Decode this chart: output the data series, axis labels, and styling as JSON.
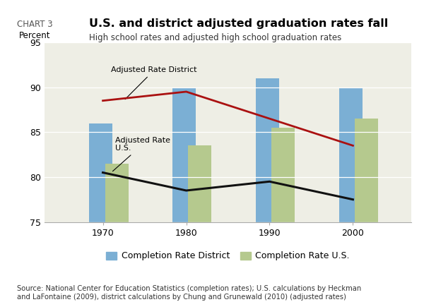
{
  "chart_label": "CHART 3",
  "title": "U.S. and district adjusted graduation rates fall",
  "subtitle": "High school rates and adjusted high school graduation rates",
  "ylabel": "Percent",
  "years": [
    1970,
    1980,
    1990,
    2000
  ],
  "completion_district": [
    86,
    90,
    91,
    90
  ],
  "completion_us": [
    81.5,
    83.5,
    85.5,
    86.5
  ],
  "adjusted_district": [
    88.5,
    89.5,
    86.5,
    83.5
  ],
  "adjusted_us": [
    80.5,
    78.5,
    79.5,
    77.5
  ],
  "bar_color_district": "#7BAFD4",
  "bar_color_us": "#B5C98E",
  "line_color_district": "#AA1111",
  "line_color_us": "#111111",
  "ylim": [
    75,
    95
  ],
  "yticks": [
    75,
    80,
    85,
    90,
    95
  ],
  "background_color": "#EEEEE5",
  "source_text": "Source: National Center for Education Statistics (completion rates); U.S. calculations by Heckman\nand LaFontaine (2009), district calculations by Chung and Grunewald (2010) (adjusted rates)",
  "annotation_district": "Adjusted Rate District",
  "annotation_us": "Adjusted Rate\nU.S.",
  "legend_district": "Completion Rate District",
  "legend_us": "Completion Rate U.S.",
  "bar_width": 2.8,
  "bar_gap": 0.5
}
